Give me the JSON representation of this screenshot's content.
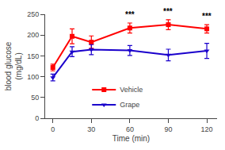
{
  "chart_data": {
    "type": "line",
    "x": [
      0,
      15,
      30,
      60,
      90,
      120
    ],
    "series": [
      {
        "name": "Vehicle",
        "color": "#ff0000",
        "marker": "square",
        "values": [
          122,
          197,
          183,
          217,
          225,
          215
        ],
        "error": [
          8,
          18,
          15,
          12,
          12,
          10
        ]
      },
      {
        "name": "Grape",
        "color": "#1a00cc",
        "marker": "triangle-down",
        "values": [
          98,
          160,
          165,
          163,
          152,
          162
        ],
        "error": [
          8,
          12,
          12,
          12,
          14,
          18
        ]
      }
    ],
    "xlabel": "Time (min)",
    "ylabel": "blood glucose\n(mg/dL)",
    "xlim": [
      -6,
      128
    ],
    "ylim": [
      0,
      250
    ],
    "xticks": [
      0,
      30,
      60,
      90,
      120
    ],
    "yticks": [
      0,
      50,
      100,
      150,
      200,
      250
    ],
    "annotations": [
      {
        "x": 60,
        "y": 234,
        "text": "***"
      },
      {
        "x": 90,
        "y": 242,
        "text": "***"
      },
      {
        "x": 120,
        "y": 230,
        "text": "***"
      }
    ],
    "grid": false,
    "legend": "lower left"
  }
}
